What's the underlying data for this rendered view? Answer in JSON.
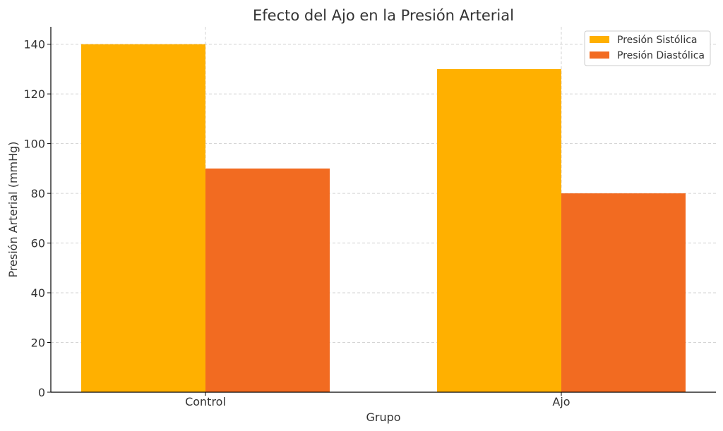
{
  "chart_data": {
    "type": "bar",
    "title": "Efecto del Ajo en la Presión Arterial",
    "xlabel": "Grupo",
    "ylabel": "Presión Arterial (mmHg)",
    "categories": [
      "Control",
      "Ajo"
    ],
    "series": [
      {
        "name": "Presión Sistólica",
        "values": [
          140,
          130
        ],
        "color": "#ffb000"
      },
      {
        "name": "Presión Diastólica",
        "values": [
          90,
          80
        ],
        "color": "#f26b21"
      }
    ],
    "ylim": [
      0,
      147
    ],
    "yticks": [
      0,
      20,
      40,
      60,
      80,
      100,
      120,
      140
    ],
    "grid": true,
    "legend_position": "top-right"
  }
}
